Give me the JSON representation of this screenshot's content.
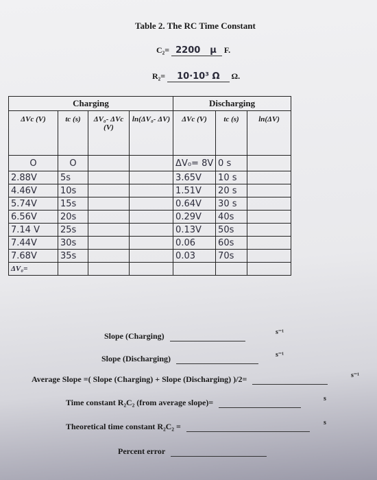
{
  "header": {
    "title": "Table 2. The RC Time Constant"
  },
  "params": [
    {
      "label": "C₂=",
      "value": "2200",
      "unit_hand": "µ",
      "unit": "F."
    },
    {
      "label": "R₂=",
      "value": "10·10³ Ω",
      "unit": "Ω."
    }
  ],
  "table": {
    "groups": [
      "Charging",
      "Discharging"
    ],
    "columns": [
      "ΔVc (V)",
      "tc (s)",
      "ΔV₀- ΔVc (V)",
      "ln(ΔV₀- ΔV)",
      "ΔVc (V)",
      "tc (s)",
      "ln(ΔV)"
    ],
    "rows": [
      [
        "O",
        "O",
        null,
        null,
        "ΔV₀= 8V",
        "0  s",
        null
      ],
      [
        "2.88V",
        "5s",
        null,
        null,
        "3.65V",
        "10 s",
        null
      ],
      [
        "4.46V",
        "10s",
        null,
        null,
        "1.51V",
        "20 s",
        null
      ],
      [
        "5.74V",
        "15s",
        null,
        null,
        "0.64V",
        "30 s",
        null
      ],
      [
        "6.56V",
        "20s",
        null,
        null,
        "0.29V",
        "40s",
        null
      ],
      [
        "7.14 V",
        "25s",
        null,
        null,
        "0.13V",
        "50s",
        null
      ],
      [
        "7.44V",
        "30s",
        null,
        null,
        "0.06",
        "60s",
        null
      ],
      [
        "7.68V",
        "35s",
        null,
        null,
        "0.03",
        "70s",
        null
      ],
      [
        "ΔV₀=",
        null,
        null,
        null,
        null,
        null,
        null
      ]
    ]
  },
  "questions": [
    {
      "label": "Slope (Charging)",
      "unit": "s⁻¹"
    },
    {
      "label": "Slope (Discharging)",
      "unit": "s⁻¹"
    },
    {
      "label": "Average Slope =( Slope (Charging) + Slope (Discharging) )/2=",
      "unit": "s⁻¹"
    },
    {
      "label": "Time constant R₂C₂  (from average slope)=",
      "unit": "s"
    },
    {
      "label": "Theoretical time constant R₂C₂  =",
      "unit": "s"
    },
    {
      "label": "Percent error"
    }
  ]
}
